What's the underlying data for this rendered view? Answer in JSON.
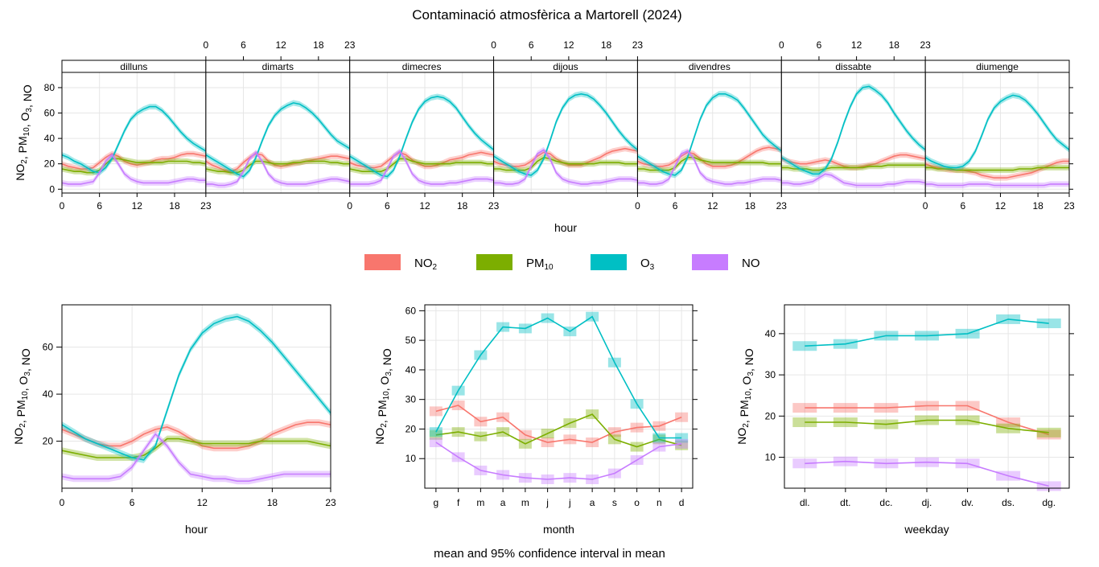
{
  "title": "Contaminació atmosfèrica a Martorell (2024)",
  "caption": "mean and 95% confidence interval in mean",
  "colors": {
    "NO2": "#F8766D",
    "PM10": "#7CAE00",
    "O3": "#00BFC4",
    "NO": "#C77CFF"
  },
  "legend": [
    {
      "key": "NO2",
      "base": "NO",
      "sub": "2"
    },
    {
      "key": "PM10",
      "base": "PM",
      "sub": "10"
    },
    {
      "key": "O3",
      "base": "O",
      "sub": "3"
    },
    {
      "key": "NO",
      "base": "NO",
      "sub": ""
    }
  ],
  "ylabel_parts": [
    [
      "NO",
      ""
    ],
    [
      "2",
      "sub"
    ],
    [
      ", PM",
      ""
    ],
    [
      "10",
      "sub"
    ],
    [
      ", O",
      ""
    ],
    [
      "3",
      "sub"
    ],
    [
      ", NO",
      ""
    ]
  ],
  "chart_data": [
    {
      "type": "line",
      "name": "hour by weekday",
      "xlabel": "hour",
      "x_ticks": [
        0,
        6,
        12,
        18,
        23
      ],
      "xlim": [
        0,
        23
      ],
      "ylim": [
        -3,
        92
      ],
      "y_ticks": [
        0,
        20,
        40,
        60,
        80
      ],
      "panels": [
        {
          "label": "dilluns",
          "series": {
            "NO2": [
              20,
              18,
              17,
              16,
              16,
              17,
              21,
              25,
              28,
              26,
              22,
              20,
              19,
              20,
              21,
              23,
              24,
              24,
              25,
              27,
              28,
              28,
              27,
              26
            ],
            "PM10": [
              16,
              15,
              14,
              14,
              13,
              13,
              15,
              20,
              24,
              24,
              23,
              22,
              21,
              21,
              21,
              21,
              21,
              22,
              22,
              22,
              22,
              21,
              21,
              20
            ],
            "O3": [
              27,
              25,
              22,
              20,
              17,
              14,
              13,
              17,
              24,
              35,
              46,
              55,
              60,
              63,
              65,
              65,
              62,
              57,
              51,
              45,
              40,
              36,
              33,
              30
            ],
            "NO": [
              5,
              4,
              4,
              4,
              5,
              6,
              13,
              22,
              27,
              20,
              12,
              8,
              6,
              5,
              5,
              5,
              5,
              5,
              6,
              7,
              8,
              8,
              7,
              7
            ]
          }
        },
        {
          "label": "dimarts",
          "series": {
            "NO2": [
              22,
              19,
              17,
              15,
              14,
              16,
              21,
              25,
              28,
              27,
              22,
              19,
              18,
              19,
              20,
              21,
              22,
              23,
              24,
              25,
              26,
              26,
              25,
              24
            ],
            "PM10": [
              16,
              15,
              14,
              14,
              13,
              13,
              15,
              19,
              22,
              22,
              21,
              20,
              20,
              20,
              21,
              21,
              22,
              22,
              22,
              22,
              21,
              21,
              20,
              20
            ],
            "O3": [
              27,
              24,
              21,
              18,
              15,
              12,
              10,
              15,
              25,
              38,
              50,
              58,
              63,
              66,
              68,
              67,
              64,
              60,
              55,
              49,
              43,
              38,
              35,
              32
            ],
            "NO": [
              4,
              4,
              3,
              3,
              4,
              6,
              14,
              24,
              29,
              22,
              12,
              7,
              5,
              4,
              4,
              4,
              4,
              5,
              6,
              7,
              8,
              8,
              7,
              6
            ]
          }
        },
        {
          "label": "dimecres",
          "series": {
            "NO2": [
              21,
              19,
              18,
              17,
              17,
              18,
              22,
              26,
              29,
              27,
              23,
              20,
              18,
              18,
              19,
              21,
              23,
              24,
              25,
              27,
              28,
              29,
              28,
              27
            ],
            "PM10": [
              16,
              15,
              14,
              14,
              14,
              14,
              16,
              20,
              24,
              24,
              22,
              21,
              20,
              20,
              20,
              20,
              20,
              21,
              21,
              21,
              21,
              21,
              20,
              20
            ],
            "O3": [
              26,
              23,
              20,
              17,
              14,
              11,
              10,
              15,
              26,
              40,
              53,
              63,
              69,
              72,
              73,
              72,
              69,
              64,
              57,
              50,
              44,
              39,
              35,
              31
            ],
            "NO": [
              4,
              4,
              4,
              4,
              5,
              7,
              16,
              26,
              30,
              22,
              12,
              7,
              5,
              4,
              4,
              4,
              5,
              5,
              6,
              7,
              8,
              8,
              8,
              7
            ]
          }
        },
        {
          "label": "dijous",
          "series": {
            "NO2": [
              22,
              20,
              19,
              18,
              18,
              19,
              22,
              26,
              29,
              28,
              24,
              21,
              19,
              19,
              19,
              21,
              23,
              25,
              28,
              30,
              31,
              32,
              31,
              30
            ],
            "PM10": [
              16,
              16,
              15,
              15,
              15,
              15,
              17,
              22,
              25,
              24,
              22,
              21,
              20,
              20,
              20,
              20,
              20,
              21,
              21,
              21,
              21,
              20,
              20,
              20
            ],
            "O3": [
              26,
              23,
              20,
              17,
              14,
              12,
              11,
              15,
              24,
              38,
              53,
              64,
              71,
              74,
              75,
              74,
              71,
              66,
              60,
              53,
              46,
              40,
              35,
              31
            ],
            "NO": [
              5,
              5,
              4,
              4,
              5,
              8,
              18,
              28,
              31,
              24,
              13,
              8,
              6,
              5,
              4,
              4,
              5,
              5,
              6,
              7,
              8,
              8,
              8,
              7
            ]
          }
        },
        {
          "label": "divendres",
          "series": {
            "NO2": [
              22,
              20,
              19,
              18,
              18,
              19,
              22,
              26,
              29,
              28,
              24,
              20,
              18,
              18,
              18,
              19,
              21,
              24,
              27,
              30,
              32,
              33,
              32,
              31
            ],
            "PM10": [
              16,
              16,
              15,
              15,
              15,
              15,
              17,
              22,
              25,
              25,
              23,
              22,
              21,
              21,
              21,
              21,
              21,
              21,
              21,
              21,
              21,
              20,
              20,
              20
            ],
            "O3": [
              26,
              23,
              20,
              17,
              14,
              12,
              11,
              15,
              25,
              40,
              55,
              66,
              72,
              75,
              75,
              73,
              70,
              64,
              57,
              50,
              43,
              38,
              34,
              30
            ],
            "NO": [
              5,
              5,
              4,
              4,
              5,
              8,
              18,
              28,
              30,
              24,
              13,
              8,
              6,
              5,
              4,
              4,
              5,
              5,
              6,
              7,
              8,
              8,
              8,
              7
            ]
          }
        },
        {
          "label": "dissabte",
          "series": {
            "NO2": [
              24,
              22,
              21,
              20,
              20,
              21,
              22,
              23,
              22,
              20,
              18,
              17,
              17,
              18,
              19,
              20,
              22,
              24,
              26,
              27,
              27,
              26,
              25,
              24
            ],
            "PM10": [
              17,
              17,
              16,
              16,
              16,
              15,
              15,
              16,
              17,
              17,
              17,
              17,
              17,
              17,
              18,
              18,
              18,
              19,
              19,
              19,
              19,
              19,
              19,
              19
            ],
            "O3": [
              25,
              22,
              19,
              16,
              14,
              12,
              12,
              16,
              24,
              37,
              52,
              65,
              75,
              80,
              81,
              78,
              74,
              68,
              60,
              53,
              46,
              40,
              35,
              31
            ],
            "NO": [
              5,
              5,
              4,
              4,
              5,
              6,
              9,
              12,
              11,
              8,
              5,
              4,
              3,
              3,
              3,
              3,
              3,
              4,
              4,
              5,
              6,
              6,
              6,
              5
            ]
          }
        },
        {
          "label": "diumenge",
          "series": {
            "NO2": [
              20,
              18,
              17,
              16,
              15,
              15,
              15,
              14,
              13,
              11,
              10,
              9,
              9,
              9,
              10,
              11,
              12,
              13,
              15,
              17,
              19,
              21,
              22,
              22
            ],
            "PM10": [
              17,
              17,
              16,
              16,
              16,
              15,
              15,
              15,
              15,
              15,
              15,
              15,
              15,
              15,
              15,
              16,
              16,
              16,
              17,
              17,
              17,
              17,
              17,
              17
            ],
            "O3": [
              25,
              22,
              20,
              18,
              17,
              17,
              18,
              22,
              30,
              42,
              55,
              64,
              69,
              72,
              74,
              73,
              70,
              65,
              59,
              52,
              45,
              39,
              35,
              31
            ],
            "NO": [
              4,
              4,
              3,
              3,
              3,
              3,
              3,
              4,
              4,
              4,
              4,
              3,
              3,
              3,
              3,
              3,
              3,
              3,
              3,
              3,
              4,
              4,
              4,
              4
            ]
          }
        }
      ]
    },
    {
      "type": "line",
      "name": "hour",
      "xlabel": "hour",
      "x_ticks": [
        0,
        6,
        12,
        18,
        23
      ],
      "xlim": [
        0,
        23
      ],
      "ylim": [
        0,
        78
      ],
      "y_ticks": [
        20,
        40,
        60
      ],
      "series": {
        "NO2": [
          25,
          23,
          21,
          19,
          18,
          18,
          20,
          23,
          25,
          26,
          24,
          21,
          18,
          17,
          17,
          17,
          18,
          20,
          23,
          25,
          27,
          28,
          28,
          27
        ],
        "PM10": [
          16,
          15,
          14,
          13,
          13,
          13,
          13,
          14,
          17,
          21,
          21,
          20,
          19,
          19,
          19,
          19,
          19,
          20,
          20,
          20,
          20,
          20,
          19,
          18
        ],
        "O3": [
          27,
          24,
          21,
          19,
          17,
          15,
          13,
          12,
          18,
          33,
          48,
          59,
          66,
          70,
          72,
          73,
          71,
          67,
          62,
          56,
          50,
          44,
          38,
          32
        ],
        "NO": [
          5,
          4,
          4,
          4,
          4,
          5,
          9,
          16,
          23,
          18,
          11,
          6,
          5,
          4,
          4,
          3,
          3,
          4,
          5,
          6,
          6,
          6,
          6,
          6
        ]
      }
    },
    {
      "type": "line",
      "name": "month",
      "xlabel": "month",
      "categories": [
        "g",
        "f",
        "m",
        "a",
        "m",
        "j",
        "j",
        "a",
        "s",
        "o",
        "n",
        "d"
      ],
      "ylim": [
        0,
        62
      ],
      "y_ticks": [
        10,
        20,
        30,
        40,
        50,
        60
      ],
      "series": {
        "NO2": [
          26,
          28,
          22.5,
          24,
          18,
          15.5,
          16.5,
          15.5,
          19,
          20.5,
          21,
          24
        ],
        "PM10": [
          18,
          19,
          17.5,
          19,
          15,
          18.5,
          22,
          25,
          16.5,
          14,
          16.5,
          14.5
        ],
        "O3": [
          19,
          33,
          45,
          54.5,
          54,
          57.5,
          53,
          58,
          42.5,
          28.5,
          17,
          17
        ],
        "NO": [
          15.5,
          10.5,
          6,
          4.5,
          3.5,
          3,
          3.5,
          3,
          5,
          9.5,
          14,
          15
        ]
      }
    },
    {
      "type": "line",
      "name": "weekday",
      "xlabel": "weekday",
      "categories": [
        "dl.",
        "dt.",
        "dc.",
        "dj.",
        "dv.",
        "ds.",
        "dg."
      ],
      "ylim": [
        2.5,
        47
      ],
      "y_ticks": [
        10,
        20,
        30,
        40
      ],
      "series": {
        "NO2": [
          22,
          22,
          22,
          22.5,
          22.5,
          18.5,
          15.5
        ],
        "PM10": [
          18.5,
          18.5,
          18,
          19,
          19,
          17,
          16
        ],
        "O3": [
          37,
          37.5,
          39.5,
          39.5,
          40,
          43.5,
          42.5
        ],
        "NO": [
          8.5,
          9,
          8.5,
          8.8,
          8.5,
          5.5,
          3
        ]
      }
    }
  ]
}
